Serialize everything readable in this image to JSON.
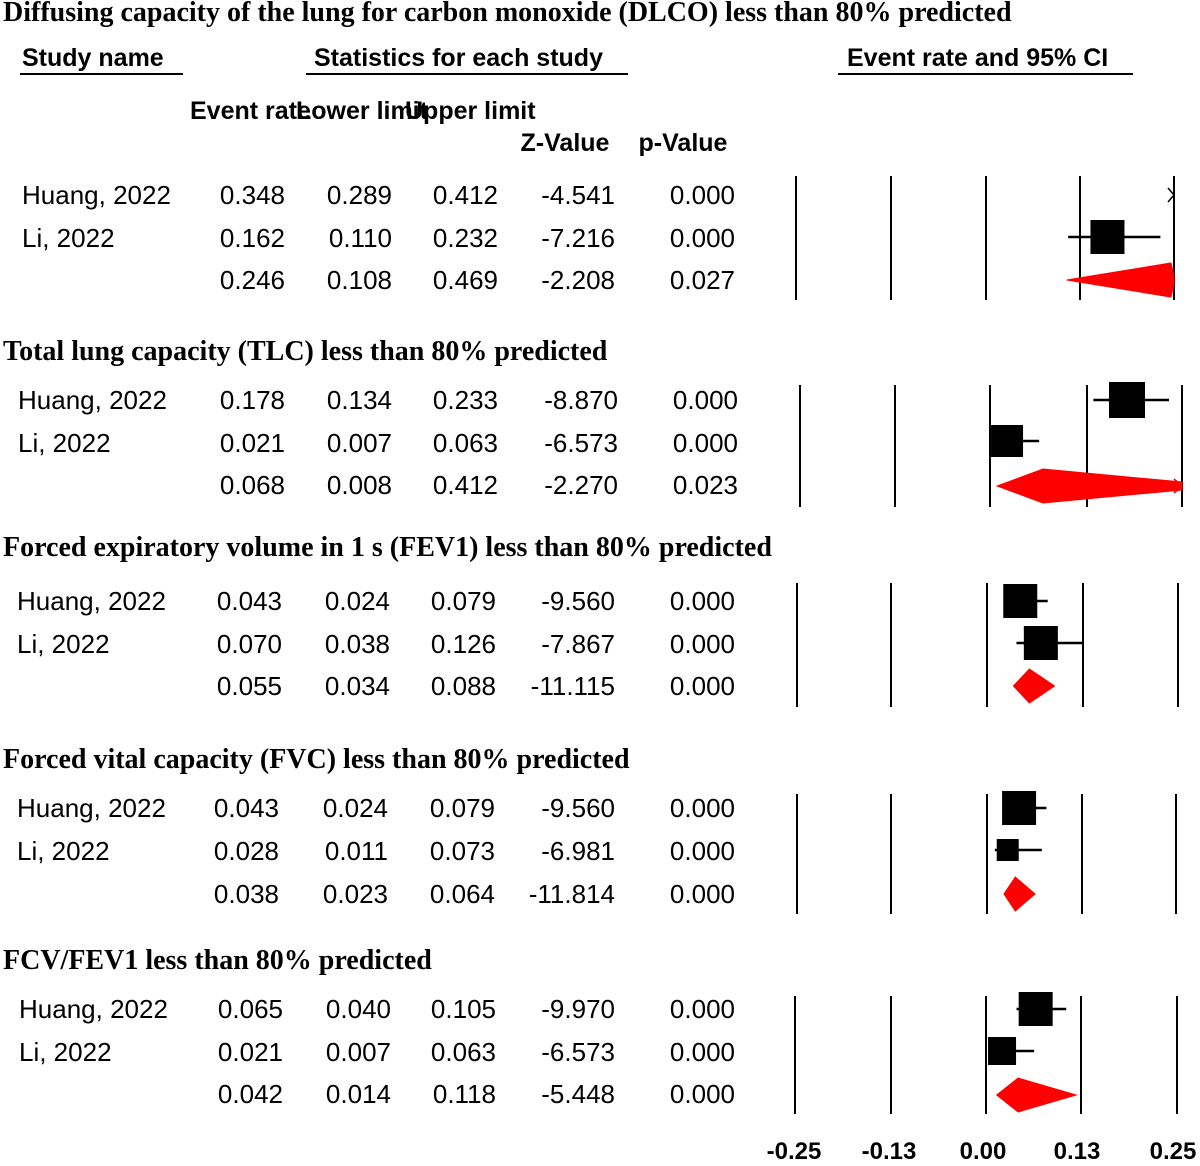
{
  "chart_data": {
    "type": "forest",
    "title": "",
    "headers": {
      "study_name": "Study name",
      "statistics": "Statistics for each study",
      "event_rate_ci": "Event rate and 95% CI",
      "columns": [
        "Event rate",
        "Lower limit",
        "Upper limit",
        "Z-Value",
        "p-Value"
      ]
    },
    "x_axis": {
      "ticks": [
        "-0.25",
        "-0.13",
        "0.00",
        "0.13",
        "0.25"
      ],
      "xlim": [
        -0.25,
        0.25
      ]
    },
    "marker_color": "#000000",
    "summary_color": "#ff0000",
    "sections": [
      {
        "title": "Diffusing capacity of the lung for carbon monoxide (DLCO) less than 80% predicted",
        "rows": [
          {
            "study": "Huang, 2022",
            "event_rate": 0.348,
            "lower": 0.289,
            "upper": 0.412,
            "z": -4.541,
            "p": 0.0,
            "cells": [
              "0.348",
              "0.289",
              "0.412",
              "-4.541",
              "0.000"
            ]
          },
          {
            "study": "Li, 2022",
            "event_rate": 0.162,
            "lower": 0.11,
            "upper": 0.232,
            "z": -7.216,
            "p": 0.0,
            "cells": [
              "0.162",
              "0.110",
              "0.232",
              "-7.216",
              "0.000"
            ]
          },
          {
            "study": "",
            "event_rate": 0.246,
            "lower": 0.108,
            "upper": 0.469,
            "z": -2.208,
            "p": 0.027,
            "summary": true,
            "cells": [
              "0.246",
              "0.108",
              "0.469",
              "-2.208",
              "0.027"
            ]
          }
        ]
      },
      {
        "title": "Total lung capacity (TLC) less than 80% predicted",
        "rows": [
          {
            "study": "Huang, 2022",
            "event_rate": 0.178,
            "lower": 0.134,
            "upper": 0.233,
            "z": -8.87,
            "p": 0.0,
            "cells": [
              "0.178",
              "0.134",
              "0.233",
              "-8.870",
              "0.000"
            ]
          },
          {
            "study": "Li, 2022",
            "event_rate": 0.021,
            "lower": 0.007,
            "upper": 0.063,
            "z": -6.573,
            "p": 0.0,
            "cells": [
              "0.021",
              "0.007",
              "0.063",
              "-6.573",
              "0.000"
            ]
          },
          {
            "study": "",
            "event_rate": 0.068,
            "lower": 0.008,
            "upper": 0.412,
            "z": -2.27,
            "p": 0.023,
            "summary": true,
            "cells": [
              "0.068",
              "0.008",
              "0.412",
              "-2.270",
              "0.023"
            ]
          }
        ]
      },
      {
        "title": "Forced expiratory volume in 1 s (FEV1) less than 80% predicted",
        "rows": [
          {
            "study": "Huang, 2022",
            "event_rate": 0.043,
            "lower": 0.024,
            "upper": 0.079,
            "z": -9.56,
            "p": 0.0,
            "cells": [
              "0.043",
              "0.024",
              "0.079",
              "-9.560",
              "0.000"
            ]
          },
          {
            "study": "Li, 2022",
            "event_rate": 0.07,
            "lower": 0.038,
            "upper": 0.126,
            "z": -7.867,
            "p": 0.0,
            "cells": [
              "0.070",
              "0.038",
              "0.126",
              "-7.867",
              "0.000"
            ]
          },
          {
            "study": "",
            "event_rate": 0.055,
            "lower": 0.034,
            "upper": 0.088,
            "z": -11.115,
            "p": 0.0,
            "summary": true,
            "cells": [
              "0.055",
              "0.034",
              "0.088",
              "-11.115",
              "0.000"
            ]
          }
        ]
      },
      {
        "title": "Forced vital capacity (FVC) less than 80% predicted",
        "rows": [
          {
            "study": "Huang, 2022",
            "event_rate": 0.043,
            "lower": 0.024,
            "upper": 0.079,
            "z": -9.56,
            "p": 0.0,
            "cells": [
              "0.043",
              "0.024",
              "0.079",
              "-9.560",
              "0.000"
            ]
          },
          {
            "study": "Li, 2022",
            "event_rate": 0.028,
            "lower": 0.011,
            "upper": 0.073,
            "z": -6.981,
            "p": 0.0,
            "cells": [
              "0.028",
              "0.011",
              "0.073",
              "-6.981",
              "0.000"
            ]
          },
          {
            "study": "",
            "event_rate": 0.038,
            "lower": 0.023,
            "upper": 0.064,
            "z": -11.814,
            "p": 0.0,
            "summary": true,
            "cells": [
              "0.038",
              "0.023",
              "0.064",
              "-11.814",
              "0.000"
            ]
          }
        ]
      },
      {
        "title": "FCV/FEV1 less than 80% predicted",
        "rows": [
          {
            "study": "Huang, 2022",
            "event_rate": 0.065,
            "lower": 0.04,
            "upper": 0.105,
            "z": -9.97,
            "p": 0.0,
            "cells": [
              "0.065",
              "0.040",
              "0.105",
              "-9.970",
              "0.000"
            ]
          },
          {
            "study": "Li, 2022",
            "event_rate": 0.021,
            "lower": 0.007,
            "upper": 0.063,
            "z": -6.573,
            "p": 0.0,
            "cells": [
              "0.021",
              "0.007",
              "0.063",
              "-6.573",
              "0.000"
            ]
          },
          {
            "study": "",
            "event_rate": 0.042,
            "lower": 0.014,
            "upper": 0.118,
            "z": -5.448,
            "p": 0.0,
            "summary": true,
            "cells": [
              "0.042",
              "0.014",
              "0.118",
              "-5.448",
              "0.000"
            ]
          }
        ]
      }
    ]
  }
}
